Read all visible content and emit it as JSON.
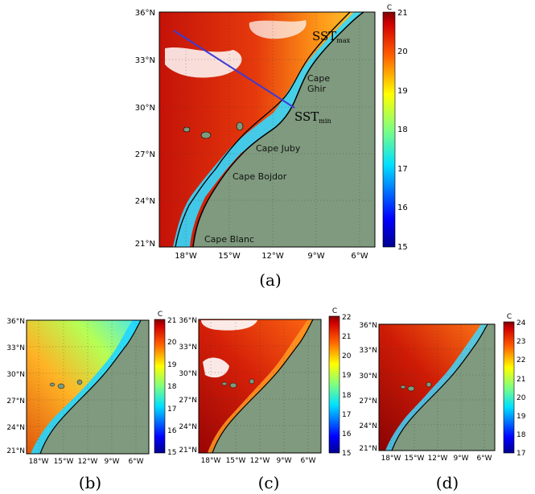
{
  "panels": [
    {
      "id": "a",
      "label": "(a)",
      "lat_ticks": [
        "36°N",
        "33°N",
        "30°N",
        "27°N",
        "24°N",
        "21°N"
      ],
      "lon_ticks": [
        "18°W",
        "15°W",
        "12°W",
        "9°W",
        "6°W"
      ],
      "colorbar": {
        "unit": "C",
        "ticks": [
          "21",
          "20",
          "19",
          "18",
          "17",
          "16",
          "15"
        ]
      },
      "places": [
        "Cape Ghir",
        "Cape Juby",
        "Cape Bojdor",
        "Cape Blanc"
      ],
      "sst_max_main": "SST",
      "sst_max_sub": "max",
      "sst_min_main": "SST",
      "sst_min_sub": "min"
    },
    {
      "id": "b",
      "label": "(b)",
      "lat_ticks": [
        "36°N",
        "33°N",
        "30°N",
        "27°N",
        "24°N",
        "21°N"
      ],
      "lon_ticks": [
        "18°W",
        "15°W",
        "12°W",
        "9°W",
        "6°W"
      ],
      "colorbar": {
        "unit": "C",
        "ticks": [
          "21",
          "20",
          "19",
          "18",
          "17",
          "16",
          "15"
        ]
      }
    },
    {
      "id": "c",
      "label": "(c)",
      "lat_ticks": [
        "36°N",
        "33°N",
        "30°N",
        "27°N",
        "24°N",
        "21°N"
      ],
      "lon_ticks": [
        "18°W",
        "15°W",
        "12°W",
        "9°W",
        "6°W"
      ],
      "colorbar": {
        "unit": "C",
        "ticks": [
          "22",
          "21",
          "20",
          "19",
          "18",
          "17",
          "16",
          "15"
        ]
      }
    },
    {
      "id": "d",
      "label": "(d)",
      "lat_ticks": [
        "36°N",
        "33°N",
        "30°N",
        "27°N",
        "24°N",
        "21°N"
      ],
      "lon_ticks": [
        "18°W",
        "15°W",
        "12°W",
        "9°W",
        "6°W"
      ],
      "colorbar": {
        "unit": "C",
        "ticks": [
          "24",
          "23",
          "22",
          "21",
          "20",
          "19",
          "18",
          "17"
        ]
      }
    }
  ],
  "colors": {
    "land": "#7f9a7e",
    "coast": "#000000",
    "transect": "#3b3bd6"
  }
}
